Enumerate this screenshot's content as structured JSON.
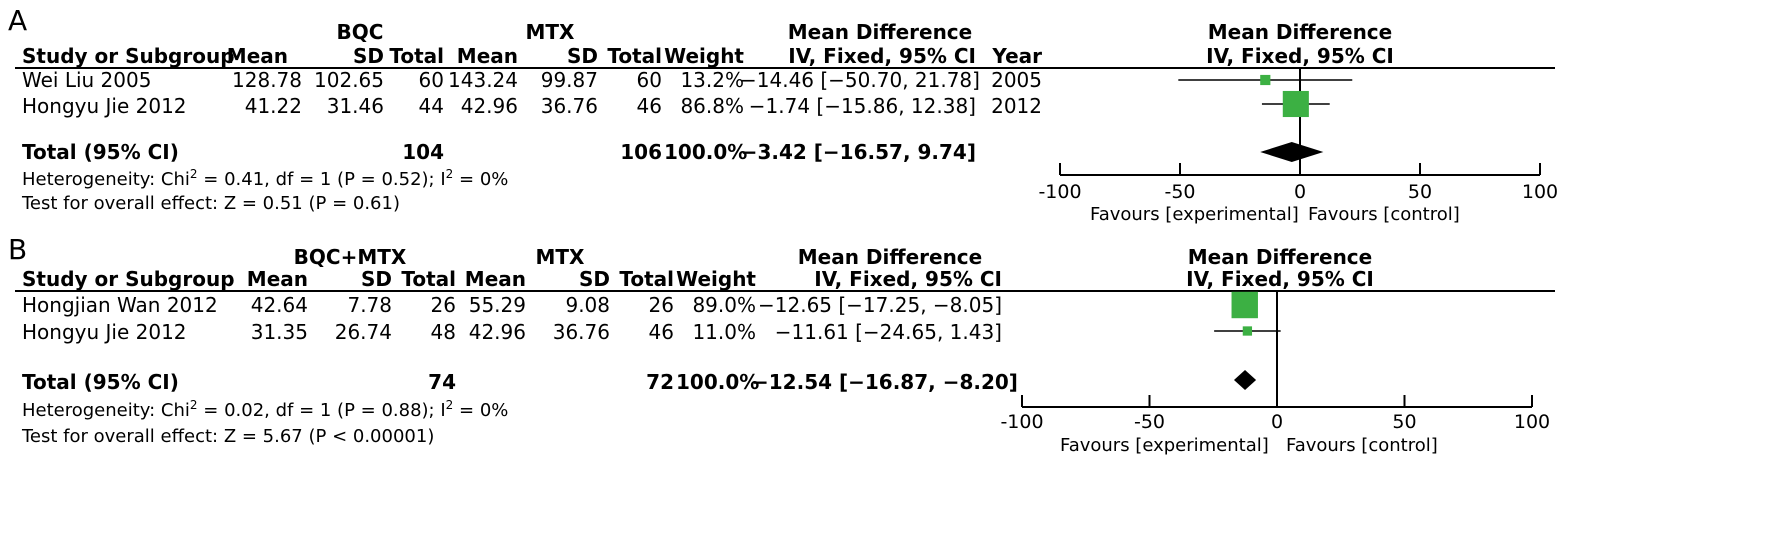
{
  "panels": [
    {
      "letter": "A",
      "group1_label": "BQC",
      "group2_label": "MTX",
      "table_headers": {
        "study": "Study or Subgroup",
        "mean1": "Mean",
        "sd1": "SD",
        "total1": "Total",
        "mean2": "Mean",
        "sd2": "SD",
        "total2": "Total",
        "weight": "Weight",
        "md_title": "Mean Difference",
        "md_sub": "IV, Fixed, 95% CI",
        "year": "Year"
      },
      "studies": [
        {
          "name": "Wei Liu 2005",
          "mean1": "128.78",
          "sd1": "102.65",
          "total1": "60",
          "mean2": "143.24",
          "sd2": "99.87",
          "total2": "60",
          "weight": "13.2%",
          "ci_text": "−14.46 [−50.70, 21.78]",
          "year": "2005"
        },
        {
          "name": "Hongyu Jie 2012",
          "mean1": "41.22",
          "sd1": "31.46",
          "total1": "44",
          "mean2": "42.96",
          "sd2": "36.76",
          "total2": "46",
          "weight": "86.8%",
          "ci_text": "−1.74 [−15.86, 12.38]",
          "year": "2012"
        }
      ],
      "total": {
        "label": "Total (95% CI)",
        "total1": "104",
        "total2": "106",
        "weight": "100.0%",
        "ci_text": "−3.42 [−16.57, 9.74]"
      },
      "heterogeneity_prefix": "Heterogeneity: Chi",
      "heterogeneity_mid": " = 0.41, df = 1 (P = 0.52); I",
      "heterogeneity_suffix": " = 0%",
      "superscript": "2",
      "overall": "Test for overall effect: Z = 0.51 (P = 0.61)",
      "plot_title": "Mean Difference",
      "plot_sub": "IV, Fixed, 95% CI",
      "favours_left": "Favours [experimental]",
      "favours_right": "Favours [control]"
    },
    {
      "letter": "B",
      "group1_label": "BQC+MTX",
      "group2_label": "MTX",
      "table_headers": {
        "study": "Study or Subgroup",
        "mean1": "Mean",
        "sd1": "SD",
        "total1": "Total",
        "mean2": "Mean",
        "sd2": "SD",
        "total2": "Total",
        "weight": "Weight",
        "md_title": "Mean Difference",
        "md_sub": "IV, Fixed, 95% CI",
        "year": ""
      },
      "studies": [
        {
          "name": "Hongjian Wan 2012",
          "mean1": "42.64",
          "sd1": "7.78",
          "total1": "26",
          "mean2": "55.29",
          "sd2": "9.08",
          "total2": "26",
          "weight": "89.0%",
          "ci_text": "−12.65 [−17.25, −8.05]",
          "year": ""
        },
        {
          "name": "Hongyu Jie 2012",
          "mean1": "31.35",
          "sd1": "26.74",
          "total1": "48",
          "mean2": "42.96",
          "sd2": "36.76",
          "total2": "46",
          "weight": "11.0%",
          "ci_text": "−11.61 [−24.65, 1.43]",
          "year": ""
        }
      ],
      "total": {
        "label": "Total (95% CI)",
        "total1": "74",
        "total2": "72",
        "weight": "100.0%",
        "ci_text": "−12.54 [−16.87, −8.20]"
      },
      "heterogeneity_prefix": "Heterogeneity: Chi",
      "heterogeneity_mid": " = 0.02, df = 1 (P = 0.88); I",
      "heterogeneity_suffix": " = 0%",
      "superscript": "2",
      "overall": "Test for overall effect: Z = 5.67 (P < 0.00001)",
      "plot_title": "Mean Difference",
      "plot_sub": "IV, Fixed, 95% CI",
      "favours_left": "Favours [experimental]",
      "favours_right": "Favours [control]"
    }
  ],
  "chart_data": [
    {
      "type": "forest",
      "xlim": [
        -100,
        100
      ],
      "ticks": [
        "-100",
        "-50",
        "0",
        "50",
        "100"
      ],
      "tick_values": [
        -100,
        -50,
        0,
        50,
        100
      ],
      "studies": [
        {
          "name": "Wei Liu 2005",
          "md": -14.46,
          "lo": -50.7,
          "hi": 21.78,
          "weight": 13.2
        },
        {
          "name": "Hongyu Jie 2012",
          "md": -1.74,
          "lo": -15.86,
          "hi": 12.38,
          "weight": 86.8
        }
      ],
      "pooled": {
        "md": -3.42,
        "lo": -16.57,
        "hi": 9.74
      },
      "colors": {
        "square": "#3cb043",
        "diamond": "#000000"
      }
    },
    {
      "type": "forest",
      "xlim": [
        -100,
        100
      ],
      "ticks": [
        "-100",
        "-50",
        "0",
        "50",
        "100"
      ],
      "tick_values": [
        -100,
        -50,
        0,
        50,
        100
      ],
      "studies": [
        {
          "name": "Hongjian Wan 2012",
          "md": -12.65,
          "lo": -17.25,
          "hi": -8.05,
          "weight": 89.0
        },
        {
          "name": "Hongyu Jie 2012",
          "md": -11.61,
          "lo": -24.65,
          "hi": 1.43,
          "weight": 11.0
        }
      ],
      "pooled": {
        "md": -12.54,
        "lo": -16.87,
        "hi": -8.2
      },
      "colors": {
        "square": "#3cb043",
        "diamond": "#000000"
      }
    }
  ]
}
